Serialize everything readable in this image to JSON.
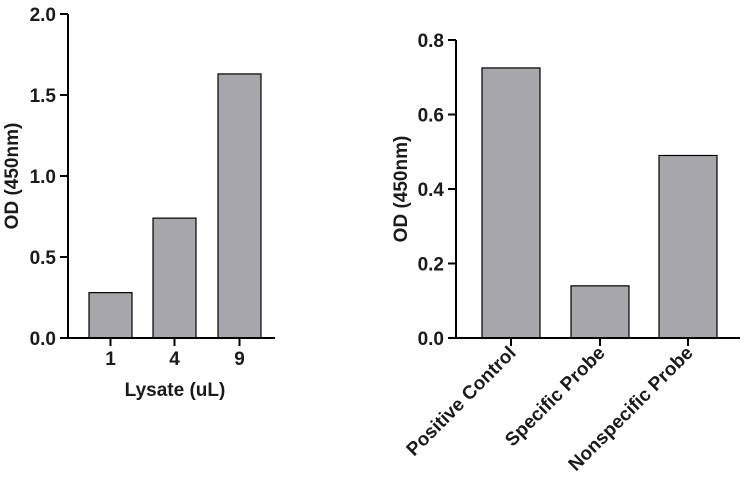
{
  "chart_data": [
    {
      "type": "bar",
      "categories": [
        "1",
        "4",
        "9"
      ],
      "values": [
        0.28,
        0.74,
        1.63
      ],
      "xlabel": "Lysate (uL)",
      "ylabel": "OD (450nm)",
      "ylim": [
        0,
        2.0
      ],
      "yticks": [
        "0.0",
        "0.5",
        "1.0",
        "1.5",
        "2.0"
      ],
      "grid": false,
      "bar_color": "#a7a6ab"
    },
    {
      "type": "bar",
      "categories": [
        "Positive Control",
        "Specific Probe",
        "Nonspecific Probe"
      ],
      "values": [
        0.725,
        0.14,
        0.49
      ],
      "xlabel": "",
      "ylabel": "OD (450nm)",
      "ylim": [
        0,
        0.8
      ],
      "yticks": [
        "0.0",
        "0.2",
        "0.4",
        "0.6",
        "0.8"
      ],
      "grid": false,
      "bar_color": "#a7a6ab"
    }
  ]
}
